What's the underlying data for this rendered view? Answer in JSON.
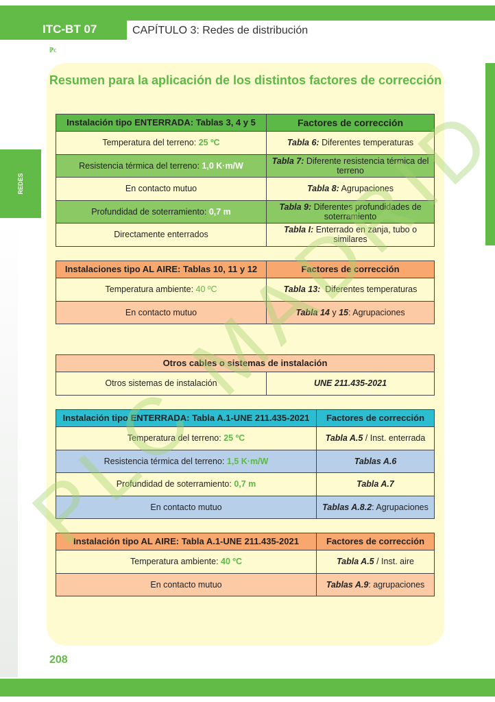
{
  "header": {
    "code": "ITC-BT 07",
    "chapter": "CAPÍTULO 3: Redes de distribución",
    "logo": "PLC madrid"
  },
  "side_tab": "REDES",
  "title": "Resumen para la aplicación de los distintos factores de corrección",
  "page_number": "208",
  "watermark": "PLC MADRID",
  "colors": {
    "green": "#5cb947",
    "orange": "#f8a86f",
    "cyan": "#2dbdd0",
    "blue": "#b8cfea",
    "panel": "#fffbd0"
  },
  "t1": {
    "h": [
      "Instalación tipo ENTERRADA: Tablas 3, 4 y 5",
      "Factores de corrección"
    ],
    "rows": [
      {
        "a": "Temperatura del terreno: ",
        "av": "25 ºC",
        "bi": "Tabla 6:",
        "b": " Diferentes temperaturas"
      },
      {
        "a": "Resistencia térmica del terreno: ",
        "av": "1,0 K·m/W",
        "bi": "Tabla 7:",
        "b": " Diferente resistencia térmica del terreno"
      },
      {
        "a": "En contacto mutuo",
        "av": "",
        "bi": "Tabla 8:",
        "b": " Agrupaciones"
      },
      {
        "a": "Profundidad de soterramiento: ",
        "av": "0,7 m",
        "bi": "Tabla 9:",
        "b": " Diferentes profundidades de soterramiento"
      },
      {
        "a": "Directamente enterrados",
        "av": "",
        "bi": "Tabla I:",
        "b": " Enterrado en zanja, tubo o similares"
      }
    ]
  },
  "t2": {
    "h": [
      "Instalaciones tipo AL AIRE: Tablas 10, 11 y 12",
      "Factores de corrección"
    ],
    "rows": [
      {
        "a": "Temperatura ambiente: ",
        "av": "40 ºC",
        "bi": "Tabla 13:",
        "b": "  Diferentes temperaturas"
      },
      {
        "a": "En contacto mutuo",
        "av": "",
        "bi": "Tabla 14",
        "b": " y ",
        "bi2": "15",
        "b2": ": Agrupaciones"
      }
    ]
  },
  "t3": {
    "h": "Otros cables o sistemas de instalación",
    "a": "Otros sistemas de instalación",
    "b": "UNE 211.435-2021"
  },
  "t4": {
    "h": [
      "Instalación tipo ENTERRADA:  Tabla A.1-UNE 211.435-2021",
      "Factores de corrección"
    ],
    "rows": [
      {
        "a": "Temperatura del terreno: ",
        "av": "25 ºC",
        "bi": "Tabla A.5",
        "b": " / Inst. enterrada"
      },
      {
        "a": "Resistencia térmica del terreno: ",
        "av": "1,5 K·m/W",
        "bi": "Tablas A.6",
        "b": ""
      },
      {
        "a": "Profundidad de soterramiento: ",
        "av": "0,7 m",
        "bi": "Tabla A.7",
        "b": ""
      },
      {
        "a": "En contacto mutuo",
        "av": "",
        "bi": "Tablas A.8.2",
        "b": ": Agrupaciones"
      }
    ]
  },
  "t5": {
    "h": [
      "Instalación tipo AL AIRE:  Tabla A.1-UNE 211.435-2021",
      "Factores de corrección"
    ],
    "rows": [
      {
        "a": "Temperatura ambiente: ",
        "av": "40 ºC",
        "bi": "Tabla A.5",
        "b": " / Inst. aire"
      },
      {
        "a": "En contacto mutuo",
        "av": "",
        "bi": "Tablas A.9",
        "b": ": agrupaciones"
      }
    ]
  }
}
